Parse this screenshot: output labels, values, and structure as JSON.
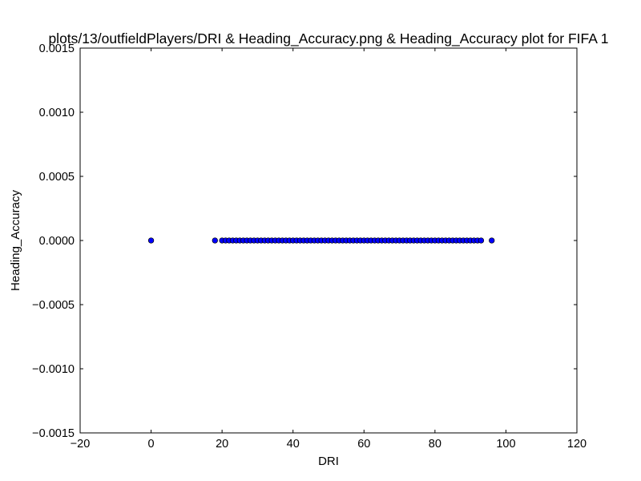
{
  "chart_data": {
    "type": "scatter",
    "title": "plots/13/outfieldPlayers/DRI & Heading_Accuracy.png & Heading_Accuracy plot for FIFA 1",
    "xlabel": "DRI",
    "ylabel": "Heading_Accuracy",
    "xlim": [
      -20,
      120
    ],
    "ylim": [
      -0.0015,
      0.0015
    ],
    "x_ticks": [
      "−20",
      "0",
      "20",
      "40",
      "60",
      "80",
      "100",
      "120"
    ],
    "y_ticks": [
      "−0.0015",
      "−0.0010",
      "−0.0005",
      "0.0000",
      "0.0005",
      "0.0010",
      "0.0015"
    ],
    "grid": false,
    "marker_color": "#0000ff",
    "marker_edge_color": "#000000",
    "series": [
      {
        "x": [
          0,
          18,
          20,
          21,
          22,
          23,
          24,
          25,
          26,
          27,
          28,
          29,
          30,
          31,
          32,
          33,
          34,
          35,
          36,
          37,
          38,
          39,
          40,
          41,
          42,
          43,
          44,
          45,
          46,
          47,
          48,
          49,
          50,
          51,
          52,
          53,
          54,
          55,
          56,
          57,
          58,
          59,
          60,
          61,
          62,
          63,
          64,
          65,
          66,
          67,
          68,
          69,
          70,
          71,
          72,
          73,
          74,
          75,
          76,
          77,
          78,
          79,
          80,
          81,
          82,
          83,
          84,
          85,
          86,
          87,
          88,
          89,
          90,
          91,
          92,
          93,
          96
        ],
        "y": [
          0,
          0,
          0,
          0,
          0,
          0,
          0,
          0,
          0,
          0,
          0,
          0,
          0,
          0,
          0,
          0,
          0,
          0,
          0,
          0,
          0,
          0,
          0,
          0,
          0,
          0,
          0,
          0,
          0,
          0,
          0,
          0,
          0,
          0,
          0,
          0,
          0,
          0,
          0,
          0,
          0,
          0,
          0,
          0,
          0,
          0,
          0,
          0,
          0,
          0,
          0,
          0,
          0,
          0,
          0,
          0,
          0,
          0,
          0,
          0,
          0,
          0,
          0,
          0,
          0,
          0,
          0,
          0,
          0,
          0,
          0,
          0,
          0,
          0,
          0,
          0,
          0
        ]
      }
    ]
  }
}
